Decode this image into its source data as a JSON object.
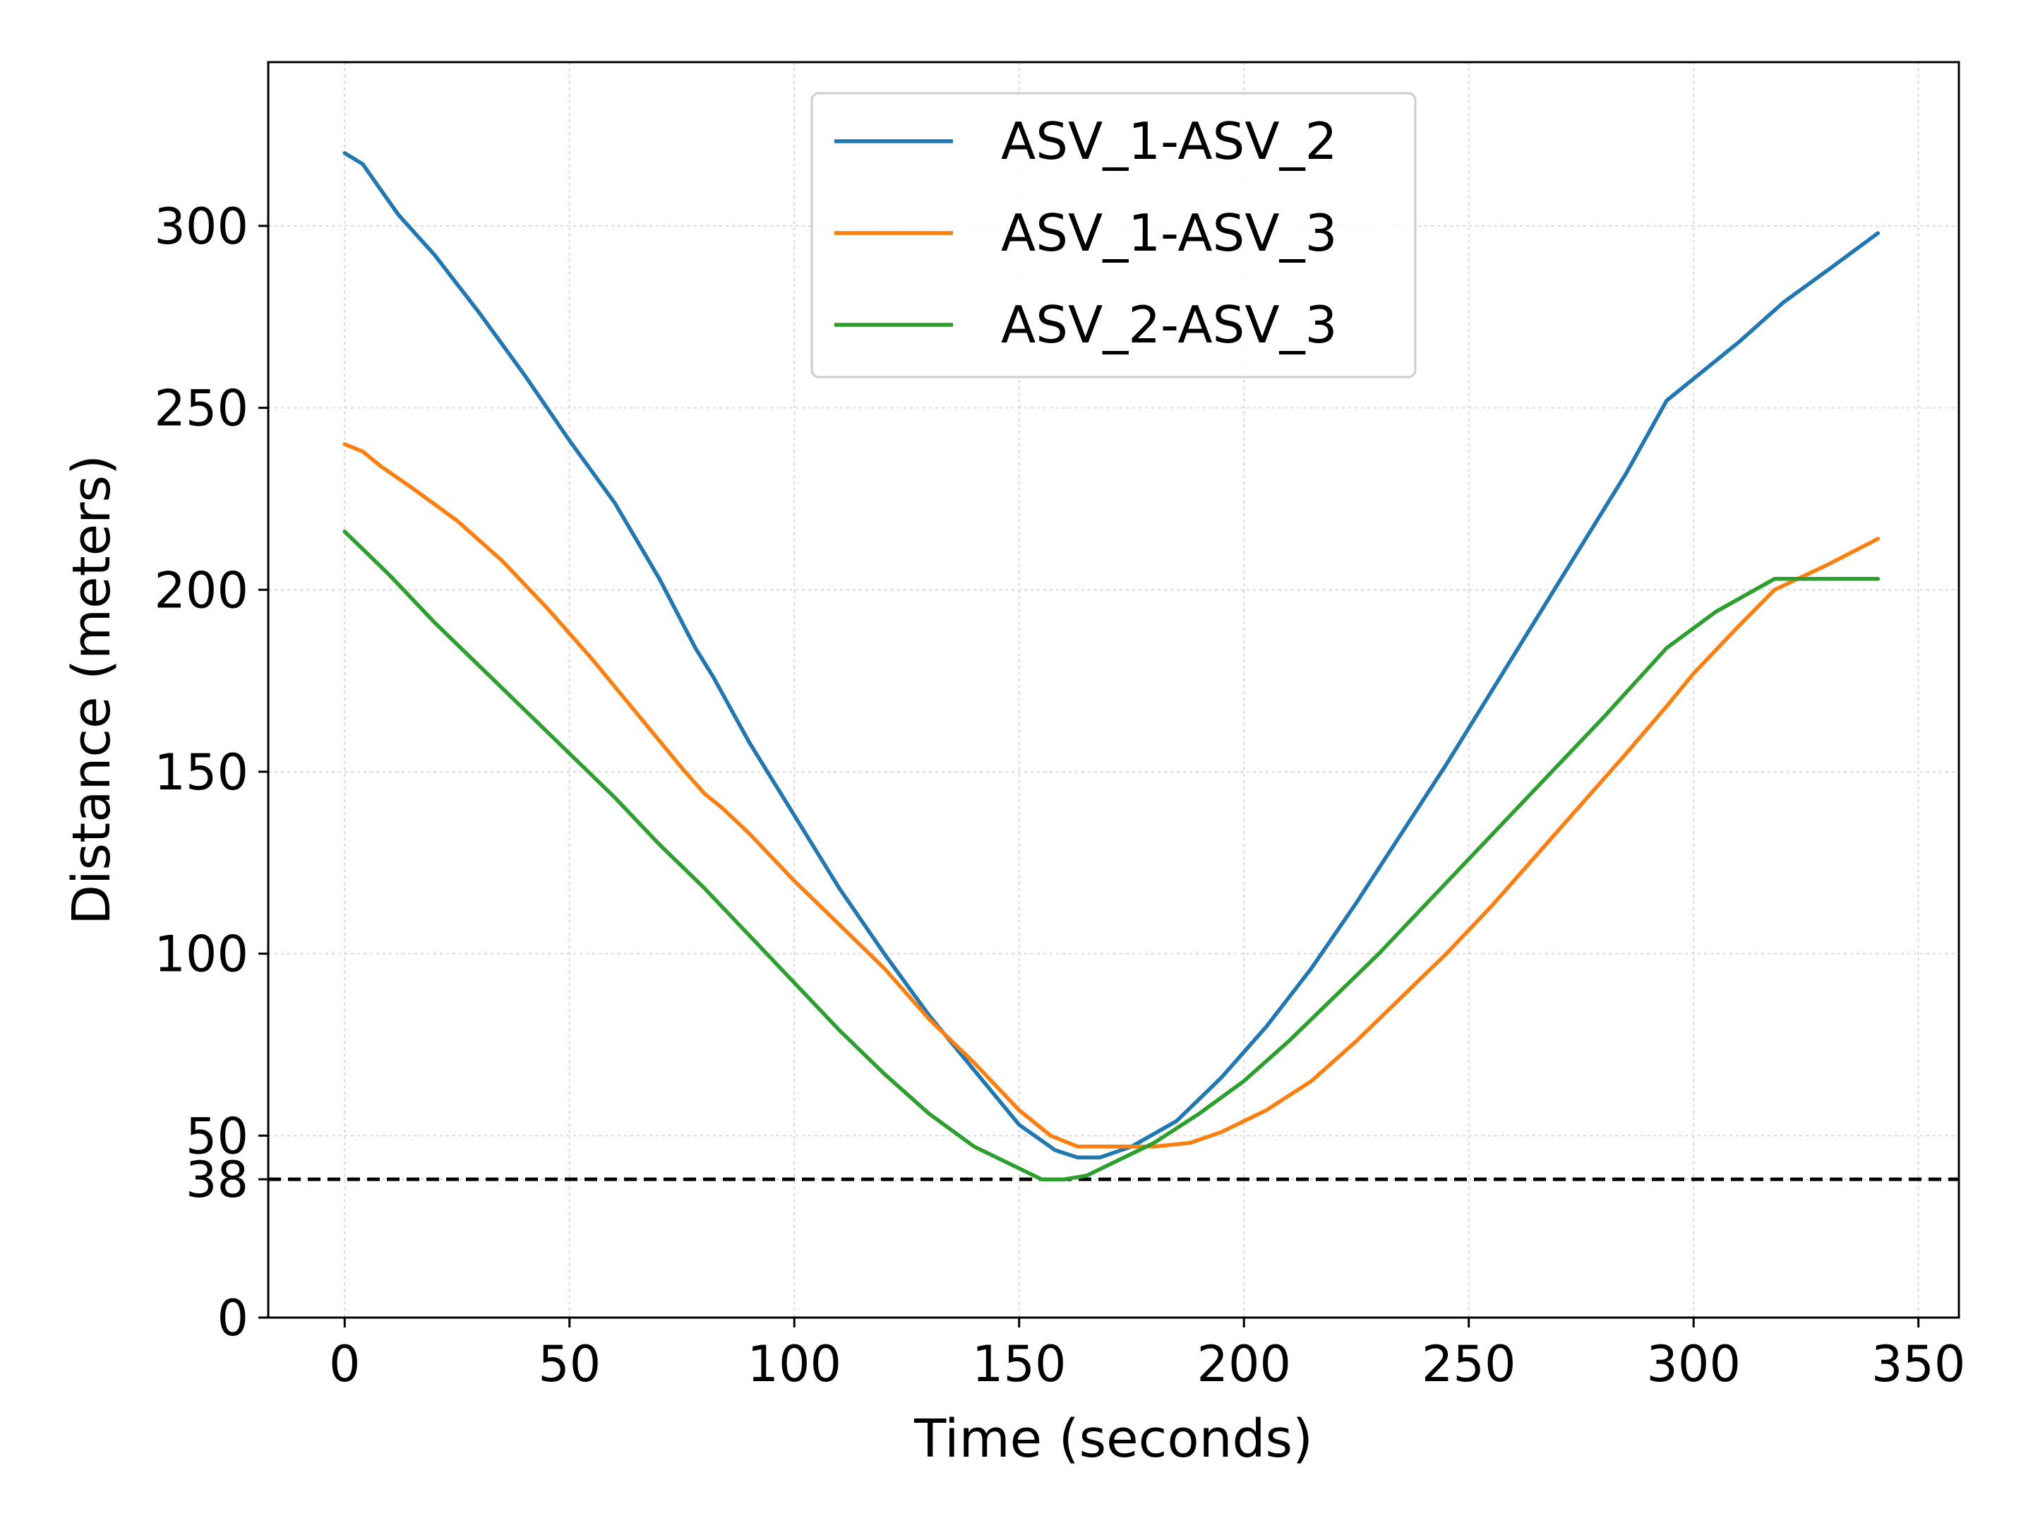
{
  "chart_data": {
    "type": "line",
    "title": "",
    "xlabel": "Time (seconds)",
    "ylabel": "Distance (meters)",
    "xlim": [
      -17,
      359
    ],
    "ylim": [
      0,
      345
    ],
    "xticks": [
      0,
      50,
      100,
      150,
      200,
      250,
      300,
      350
    ],
    "yticks": [
      0,
      38,
      50,
      100,
      150,
      200,
      250,
      300
    ],
    "grid": true,
    "legend_position": "top-center",
    "threshold": {
      "value": 38,
      "style": "dashed",
      "color": "#000000"
    },
    "series": [
      {
        "name": "ASV_1-ASV_2",
        "color": "#1f77b4",
        "points": [
          [
            0,
            320
          ],
          [
            4,
            317
          ],
          [
            8,
            310
          ],
          [
            12,
            303
          ],
          [
            20,
            292
          ],
          [
            30,
            276
          ],
          [
            40,
            259
          ],
          [
            50,
            241
          ],
          [
            60,
            224
          ],
          [
            70,
            203
          ],
          [
            78,
            184
          ],
          [
            82,
            176
          ],
          [
            90,
            158
          ],
          [
            100,
            138
          ],
          [
            110,
            118
          ],
          [
            120,
            100
          ],
          [
            130,
            83
          ],
          [
            140,
            68
          ],
          [
            150,
            53
          ],
          [
            158,
            46
          ],
          [
            163,
            44
          ],
          [
            168,
            44
          ],
          [
            175,
            47
          ],
          [
            185,
            54
          ],
          [
            195,
            66
          ],
          [
            205,
            80
          ],
          [
            215,
            96
          ],
          [
            225,
            114
          ],
          [
            235,
            133
          ],
          [
            245,
            152
          ],
          [
            255,
            172
          ],
          [
            265,
            192
          ],
          [
            275,
            212
          ],
          [
            285,
            232
          ],
          [
            294,
            252
          ],
          [
            300,
            258
          ],
          [
            310,
            268
          ],
          [
            320,
            279
          ],
          [
            330,
            288
          ],
          [
            341,
            298
          ]
        ]
      },
      {
        "name": "ASV_1-ASV_3",
        "color": "#ff7f0e",
        "points": [
          [
            0,
            240
          ],
          [
            4,
            238
          ],
          [
            8,
            234
          ],
          [
            15,
            228
          ],
          [
            25,
            219
          ],
          [
            35,
            208
          ],
          [
            45,
            195
          ],
          [
            55,
            181
          ],
          [
            65,
            166
          ],
          [
            75,
            151
          ],
          [
            80,
            144
          ],
          [
            84,
            140
          ],
          [
            90,
            133
          ],
          [
            100,
            120
          ],
          [
            110,
            108
          ],
          [
            120,
            96
          ],
          [
            130,
            82
          ],
          [
            140,
            70
          ],
          [
            150,
            57
          ],
          [
            157,
            50
          ],
          [
            163,
            47
          ],
          [
            170,
            47
          ],
          [
            180,
            47
          ],
          [
            188,
            48
          ],
          [
            195,
            51
          ],
          [
            205,
            57
          ],
          [
            215,
            65
          ],
          [
            225,
            76
          ],
          [
            235,
            88
          ],
          [
            245,
            100
          ],
          [
            255,
            113
          ],
          [
            265,
            127
          ],
          [
            275,
            141
          ],
          [
            285,
            155
          ],
          [
            294,
            168
          ],
          [
            300,
            177
          ],
          [
            310,
            190
          ],
          [
            318,
            200
          ],
          [
            330,
            207
          ],
          [
            341,
            214
          ]
        ]
      },
      {
        "name": "ASV_2-ASV_3",
        "color": "#2ca02c",
        "points": [
          [
            0,
            216
          ],
          [
            5,
            210
          ],
          [
            10,
            204
          ],
          [
            20,
            191
          ],
          [
            30,
            179
          ],
          [
            40,
            167
          ],
          [
            50,
            155
          ],
          [
            60,
            143
          ],
          [
            70,
            130
          ],
          [
            80,
            118
          ],
          [
            90,
            105
          ],
          [
            100,
            92
          ],
          [
            110,
            79
          ],
          [
            120,
            67
          ],
          [
            130,
            56
          ],
          [
            140,
            47
          ],
          [
            150,
            41
          ],
          [
            155,
            38
          ],
          [
            160,
            38
          ],
          [
            165,
            39
          ],
          [
            170,
            42
          ],
          [
            180,
            48
          ],
          [
            190,
            56
          ],
          [
            200,
            65
          ],
          [
            210,
            76
          ],
          [
            220,
            88
          ],
          [
            230,
            100
          ],
          [
            240,
            113
          ],
          [
            250,
            126
          ],
          [
            260,
            139
          ],
          [
            270,
            152
          ],
          [
            280,
            165
          ],
          [
            294,
            184
          ],
          [
            305,
            194
          ],
          [
            318,
            203
          ],
          [
            330,
            203
          ],
          [
            341,
            203
          ]
        ]
      }
    ]
  }
}
